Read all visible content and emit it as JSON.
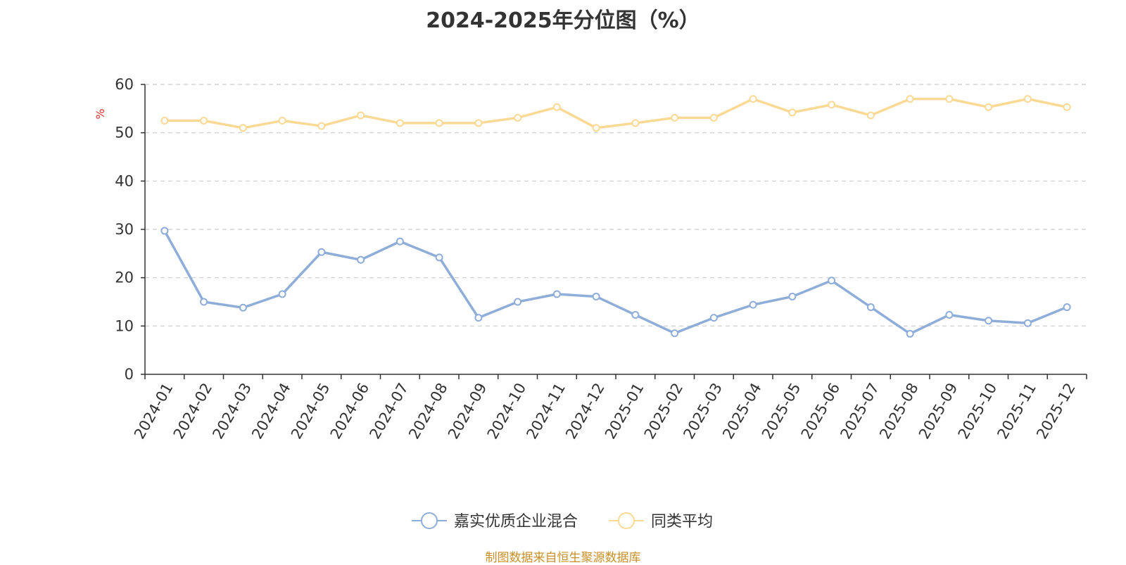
{
  "chart_data": {
    "type": "line",
    "title": "2024-2025年分位图（%）",
    "y_unit": "%",
    "ylim": [
      0,
      60
    ],
    "y_ticks": [
      0,
      10,
      20,
      30,
      40,
      50,
      60
    ],
    "grid": true,
    "legend_position": "bottom",
    "categories": [
      "2024-01",
      "2024-02",
      "2024-03",
      "2024-04",
      "2024-05",
      "2024-06",
      "2024-07",
      "2024-08",
      "2024-09",
      "2024-10",
      "2024-11",
      "2024-12",
      "2025-01",
      "2025-02",
      "2025-03",
      "2025-04",
      "2025-05",
      "2025-06",
      "2025-07",
      "2025-08",
      "2025-09",
      "2025-10",
      "2025-11",
      "2025-12"
    ],
    "series": [
      {
        "name": "嘉实优质企业混合",
        "color": "#8eadd9",
        "values": [
          29.7,
          15.0,
          13.8,
          16.6,
          25.3,
          23.7,
          27.5,
          24.2,
          11.7,
          15.0,
          16.6,
          16.1,
          12.3,
          8.5,
          11.7,
          14.4,
          16.1,
          19.4,
          13.9,
          8.4,
          12.3,
          11.1,
          10.6,
          13.9
        ]
      },
      {
        "name": "同类平均",
        "color": "#fad995",
        "values": [
          52.5,
          52.5,
          51.0,
          52.5,
          51.4,
          53.6,
          52.0,
          52.0,
          52.0,
          53.1,
          55.3,
          51.0,
          52.0,
          53.1,
          53.1,
          57.0,
          54.2,
          55.8,
          53.6,
          57.0,
          57.0,
          55.3,
          57.0,
          55.3
        ]
      }
    ]
  },
  "source": "制图数据来自恒生聚源数据库",
  "colors": {
    "axis": "#333333",
    "grid": "#cccccc",
    "unit": "#e03030"
  }
}
